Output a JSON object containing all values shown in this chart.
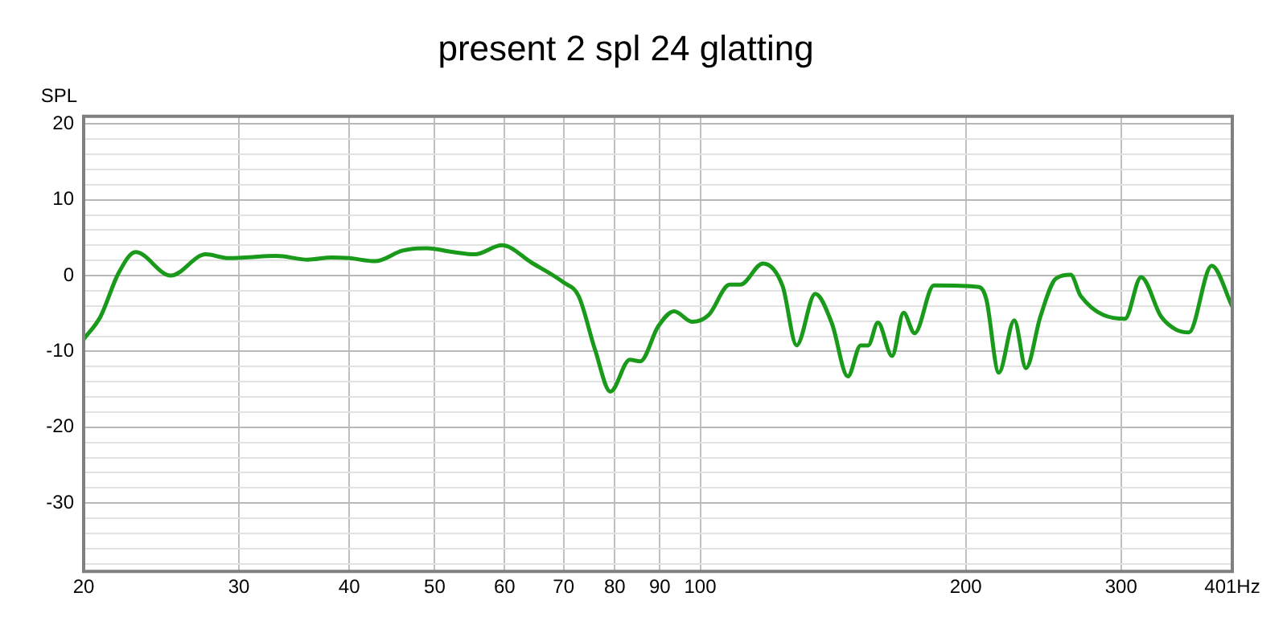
{
  "chart_data": {
    "type": "line",
    "title": "present 2 spl 24 glatting",
    "ylabel": "SPL",
    "log": "x",
    "grid": true,
    "legend": false,
    "marker": "none",
    "line_style": "solid",
    "xlim": [
      20,
      401
    ],
    "xticks": [
      20,
      30,
      40,
      50,
      60,
      70,
      80,
      90,
      100,
      200,
      300,
      {
        "value": 401,
        "label": "401Hz"
      }
    ],
    "ylim": [
      -39,
      21
    ],
    "yticks": [
      {
        "value": -38,
        "label": null
      },
      {
        "value": -36,
        "label": null
      },
      {
        "value": -34,
        "label": null
      },
      {
        "value": -32,
        "label": null
      },
      -30,
      {
        "value": -28,
        "label": null
      },
      {
        "value": -26,
        "label": null
      },
      {
        "value": -24,
        "label": null
      },
      {
        "value": -22,
        "label": null
      },
      -20,
      {
        "value": -18,
        "label": null
      },
      {
        "value": -16,
        "label": null
      },
      {
        "value": -14,
        "label": null
      },
      {
        "value": -12,
        "label": null
      },
      -10,
      {
        "value": -8,
        "label": null
      },
      {
        "value": -6,
        "label": null
      },
      {
        "value": -4,
        "label": null
      },
      {
        "value": -2,
        "label": null
      },
      0,
      {
        "value": 2,
        "label": null
      },
      {
        "value": 4,
        "label": null
      },
      {
        "value": 6,
        "label": null
      },
      {
        "value": 8,
        "label": null
      },
      10,
      {
        "value": 12,
        "label": null
      },
      {
        "value": 14,
        "label": null
      },
      {
        "value": 16,
        "label": null
      },
      {
        "value": 18,
        "label": null
      },
      20
    ],
    "series": [
      {
        "color": "#1a9a1a",
        "x": [
          20,
          20.9,
          21.9,
          22.9,
          25.1,
          27.5,
          29.2,
          33.1,
          35.9,
          38.2,
          40,
          42.8,
          46,
          49,
          52.5,
          55.5,
          59.6,
          64.4,
          70,
          72.8,
          76,
          79.1,
          83.2,
          85.5,
          89.6,
          93.4,
          98,
          102.2,
          108,
          111,
          117.8,
          124,
          128.6,
          135,
          141,
          147,
          152,
          155,
          159,
          165,
          170,
          175,
          184,
          207,
          211,
          218,
          227,
          234,
          243,
          253,
          263,
          270,
          303,
          316,
          333,
          346,
          358,
          380,
          401
        ],
        "values": [
          -8.4,
          -5.4,
          0.3,
          3.1,
          0,
          2.8,
          2.3,
          2.6,
          2.1,
          2.4,
          2.3,
          1.9,
          3.3,
          3.6,
          3.1,
          2.8,
          4.0,
          1.7,
          -0.9,
          -2.7,
          -9.8,
          -15.3,
          -11.1,
          -11.3,
          -6.7,
          -4.7,
          -6.1,
          -5.2,
          -1.2,
          -1.2,
          1.6,
          -1.4,
          -9.2,
          -2.4,
          -6.3,
          -13.3,
          -9.2,
          -9.2,
          -6.2,
          -10.6,
          -4.9,
          -7.6,
          -1.3,
          -1.5,
          -3.1,
          -12.8,
          -5.9,
          -12.2,
          -5.4,
          -0.4,
          0.1,
          -2.7,
          -5.7,
          -0.2,
          -5.4,
          -7.1,
          -7.5,
          1.3,
          -4.1
        ]
      }
    ]
  }
}
